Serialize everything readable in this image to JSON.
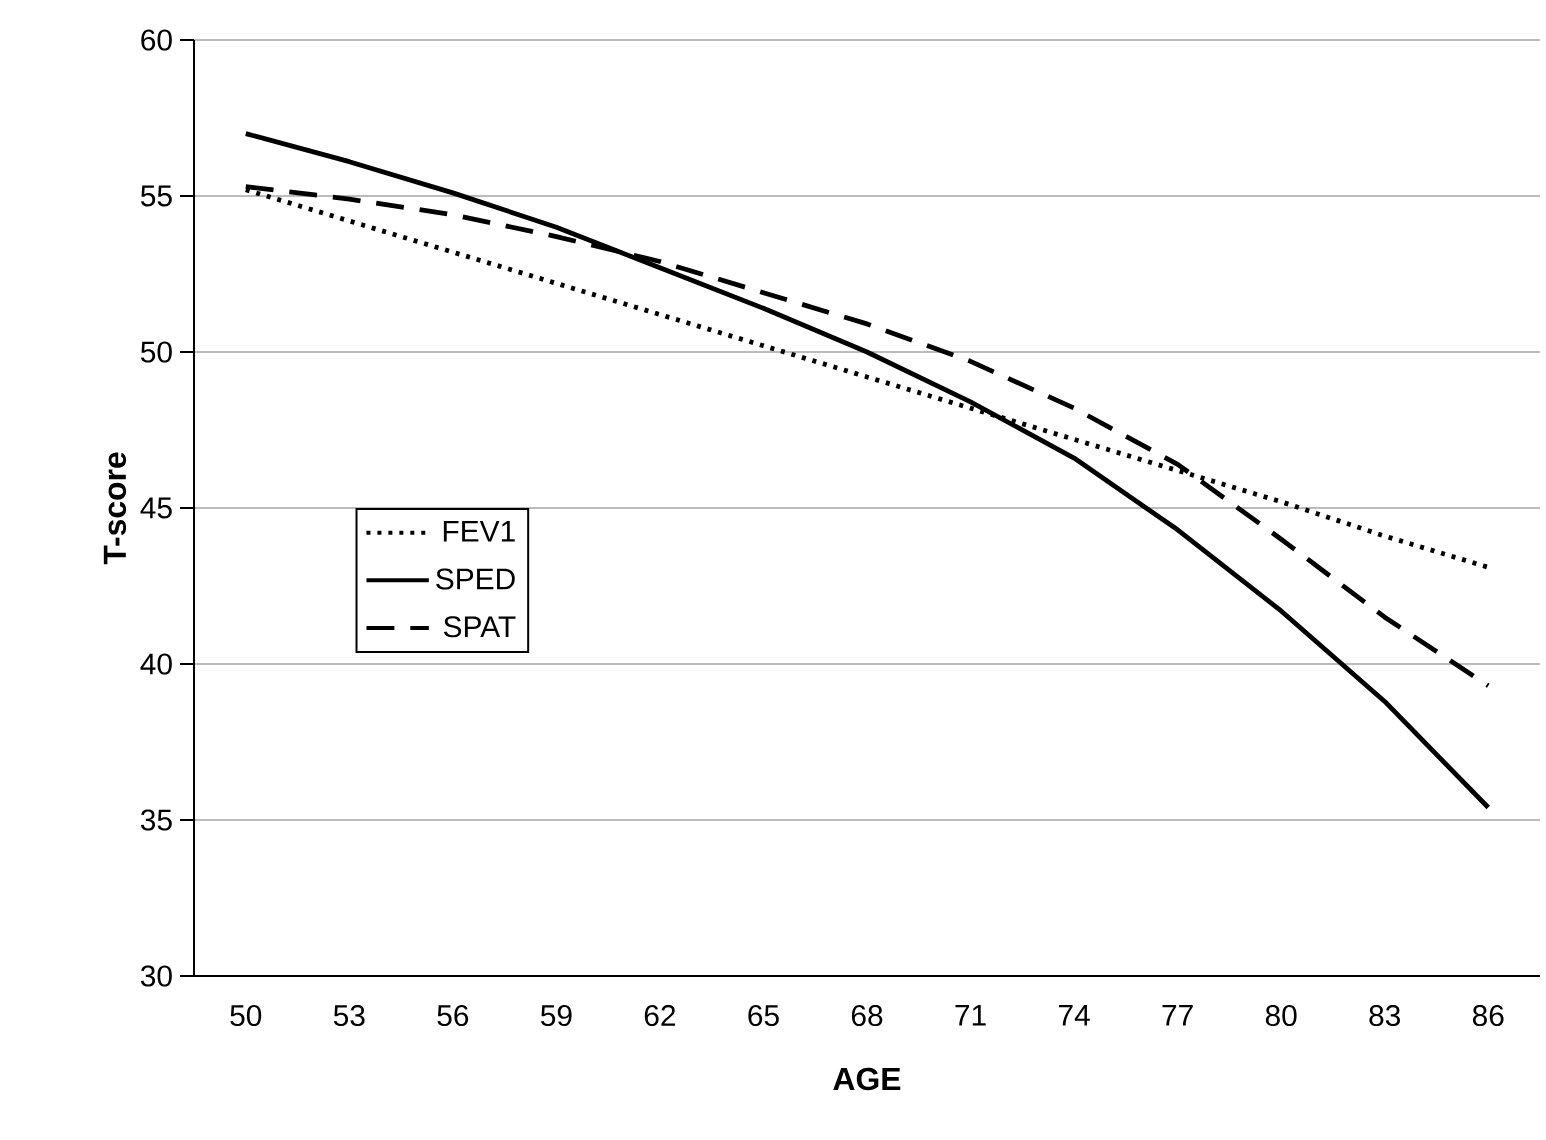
{
  "chart_data": {
    "type": "line",
    "xlabel": "AGE",
    "ylabel": "T-score",
    "categories": [
      "50",
      "53",
      "56",
      "59",
      "62",
      "65",
      "68",
      "71",
      "74",
      "77",
      "80",
      "83",
      "86"
    ],
    "series": [
      {
        "name": "FEV1",
        "color": "#000000",
        "line_style": "dotted",
        "values": [
          55.2,
          54.2,
          53.2,
          52.2,
          51.2,
          50.2,
          49.2,
          48.2,
          47.2,
          46.2,
          45.2,
          44.1,
          43.1
        ]
      },
      {
        "name": "SPED",
        "color": "#000000",
        "line_style": "solid",
        "values": [
          57.0,
          56.1,
          55.1,
          54.0,
          52.7,
          51.4,
          50.0,
          48.4,
          46.6,
          44.3,
          41.7,
          38.8,
          35.4
        ]
      },
      {
        "name": "SPAT",
        "color": "#000000",
        "line_style": "dashed",
        "values": [
          55.3,
          54.9,
          54.4,
          53.7,
          52.9,
          51.9,
          50.9,
          49.7,
          48.2,
          46.4,
          44.0,
          41.5,
          39.3
        ]
      }
    ],
    "ylim": [
      30,
      60
    ],
    "yticks": [
      30,
      35,
      40,
      45,
      50,
      55,
      60
    ],
    "grid": "y",
    "legend": "left",
    "marker": "none"
  }
}
